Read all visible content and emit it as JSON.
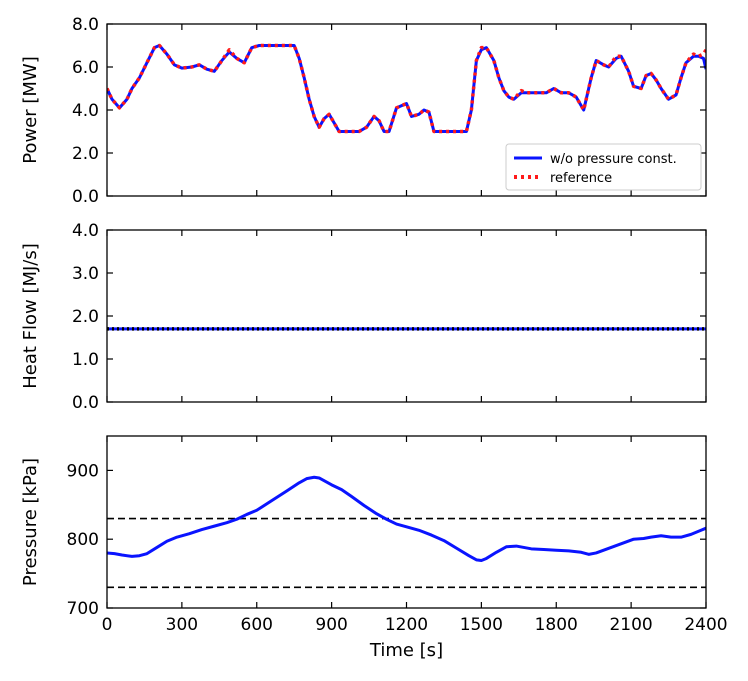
{
  "chart_data": [
    {
      "type": "line",
      "ylabel": "Power [MW]",
      "ylim": [
        0,
        8
      ],
      "yticks": [
        "0.0",
        "2.0",
        "4.0",
        "6.0",
        "8.0"
      ],
      "xlim": [
        0,
        2400
      ],
      "legend": {
        "placement": "lower-right",
        "entries": [
          "w/o pressure const.",
          "reference"
        ]
      },
      "series": [
        {
          "name": "w/o pressure const.",
          "color": "#0a14ff",
          "style": "solid",
          "x": [
            0,
            20,
            50,
            80,
            100,
            130,
            160,
            190,
            210,
            240,
            270,
            300,
            340,
            370,
            400,
            430,
            460,
            490,
            520,
            550,
            580,
            610,
            650,
            700,
            750,
            770,
            790,
            810,
            830,
            850,
            870,
            890,
            930,
            980,
            1010,
            1040,
            1070,
            1090,
            1110,
            1130,
            1160,
            1200,
            1220,
            1250,
            1270,
            1290,
            1310,
            1340,
            1380,
            1420,
            1440,
            1460,
            1480,
            1500,
            1520,
            1550,
            1570,
            1590,
            1610,
            1630,
            1660,
            1680,
            1700,
            1730,
            1760,
            1790,
            1820,
            1850,
            1880,
            1910,
            1940,
            1960,
            1990,
            2010,
            2040,
            2060,
            2090,
            2110,
            2140,
            2160,
            2180,
            2200,
            2220,
            2250,
            2280,
            2300,
            2320,
            2350,
            2370,
            2390,
            2400
          ],
          "values": [
            5.0,
            4.5,
            4.1,
            4.5,
            5.0,
            5.5,
            6.2,
            6.9,
            7.0,
            6.6,
            6.1,
            5.95,
            6.0,
            6.1,
            5.9,
            5.8,
            6.3,
            6.7,
            6.4,
            6.2,
            6.9,
            7.0,
            7.0,
            7.0,
            7.0,
            6.4,
            5.5,
            4.5,
            3.7,
            3.2,
            3.6,
            3.8,
            3.0,
            3.0,
            3.0,
            3.2,
            3.7,
            3.5,
            3.0,
            3.0,
            4.1,
            4.3,
            3.7,
            3.8,
            4.0,
            3.9,
            3.0,
            3.0,
            3.0,
            3.0,
            3.0,
            4.0,
            6.3,
            6.8,
            6.9,
            6.3,
            5.5,
            4.9,
            4.6,
            4.5,
            4.8,
            4.8,
            4.8,
            4.8,
            4.8,
            5.0,
            4.8,
            4.8,
            4.6,
            4.0,
            5.5,
            6.3,
            6.1,
            6.0,
            6.4,
            6.5,
            5.8,
            5.1,
            5.0,
            5.6,
            5.7,
            5.4,
            5.0,
            4.5,
            4.7,
            5.5,
            6.2,
            6.5,
            6.5,
            6.4,
            5.9
          ]
        },
        {
          "name": "reference",
          "color": "#ff1a1a",
          "style": "dotted",
          "x": [
            0,
            20,
            50,
            80,
            100,
            130,
            160,
            190,
            210,
            240,
            270,
            300,
            340,
            370,
            400,
            430,
            460,
            490,
            520,
            550,
            580,
            610,
            650,
            700,
            750,
            770,
            790,
            810,
            830,
            850,
            870,
            890,
            930,
            980,
            1010,
            1040,
            1070,
            1090,
            1110,
            1130,
            1160,
            1200,
            1220,
            1250,
            1270,
            1290,
            1310,
            1340,
            1380,
            1420,
            1440,
            1460,
            1480,
            1500,
            1520,
            1550,
            1570,
            1590,
            1610,
            1630,
            1660,
            1680,
            1700,
            1730,
            1760,
            1790,
            1820,
            1850,
            1880,
            1910,
            1940,
            1960,
            1990,
            2010,
            2040,
            2060,
            2090,
            2110,
            2140,
            2160,
            2180,
            2200,
            2220,
            2250,
            2280,
            2300,
            2320,
            2350,
            2370,
            2390,
            2400
          ],
          "values": [
            5.0,
            4.5,
            4.1,
            4.5,
            5.0,
            5.5,
            6.2,
            6.9,
            7.0,
            6.6,
            6.1,
            5.95,
            6.0,
            6.1,
            5.9,
            5.8,
            6.3,
            6.8,
            6.4,
            6.2,
            6.9,
            7.0,
            7.0,
            7.0,
            7.0,
            6.4,
            5.5,
            4.5,
            3.7,
            3.2,
            3.6,
            3.8,
            3.0,
            3.0,
            3.0,
            3.2,
            3.7,
            3.5,
            3.0,
            3.0,
            4.1,
            4.3,
            3.7,
            3.8,
            4.0,
            3.9,
            3.0,
            3.0,
            3.0,
            3.0,
            3.0,
            4.0,
            6.3,
            6.9,
            6.9,
            6.3,
            5.5,
            4.9,
            4.6,
            4.5,
            4.9,
            4.8,
            4.8,
            4.8,
            4.8,
            5.0,
            4.8,
            4.8,
            4.6,
            4.0,
            5.5,
            6.3,
            6.1,
            6.0,
            6.5,
            6.5,
            5.8,
            5.1,
            5.0,
            5.6,
            5.7,
            5.4,
            5.0,
            4.5,
            4.7,
            5.5,
            6.2,
            6.6,
            6.5,
            6.6,
            6.8
          ]
        }
      ]
    },
    {
      "type": "line",
      "ylabel": "Heat Flow [MJ/s]",
      "ylim": [
        0,
        4
      ],
      "yticks": [
        "0.0",
        "1.0",
        "2.0",
        "3.0",
        "4.0"
      ],
      "xlim": [
        0,
        2400
      ],
      "series": [
        {
          "color": "#0a14ff",
          "style": "solid",
          "x": [
            0,
            2400
          ],
          "values": [
            1.7,
            1.7
          ]
        },
        {
          "color": "#000000",
          "style": "dotted",
          "x": [
            0,
            2400
          ],
          "values": [
            1.7,
            1.7
          ]
        }
      ]
    },
    {
      "type": "line",
      "ylabel": "Pressure [kPa]",
      "xlabel": "Time [s]",
      "ylim": [
        700,
        950
      ],
      "yticks": [
        "700",
        "800",
        "900"
      ],
      "xlim": [
        0,
        2400
      ],
      "xticks": [
        "0",
        "300",
        "600",
        "900",
        "1200",
        "1500",
        "1800",
        "2100",
        "2400"
      ],
      "series": [
        {
          "color": "#0a14ff",
          "style": "solid",
          "x": [
            0,
            30,
            60,
            100,
            130,
            160,
            200,
            240,
            280,
            330,
            380,
            430,
            480,
            520,
            560,
            600,
            660,
            720,
            770,
            800,
            830,
            850,
            870,
            900,
            940,
            980,
            1030,
            1080,
            1120,
            1160,
            1200,
            1250,
            1300,
            1350,
            1400,
            1450,
            1480,
            1500,
            1520,
            1560,
            1600,
            1640,
            1670,
            1700,
            1750,
            1800,
            1850,
            1900,
            1930,
            1960,
            1990,
            2020,
            2050,
            2080,
            2110,
            2150,
            2180,
            2220,
            2260,
            2300,
            2340,
            2380,
            2400
          ],
          "values": [
            780,
            779,
            777,
            775,
            776,
            779,
            788,
            797,
            803,
            808,
            814,
            819,
            824,
            829,
            836,
            842,
            856,
            870,
            882,
            888,
            890,
            889,
            885,
            879,
            872,
            862,
            849,
            837,
            829,
            822,
            818,
            813,
            806,
            798,
            787,
            776,
            770,
            769,
            772,
            781,
            789,
            790,
            788,
            786,
            785,
            784,
            783,
            781,
            778,
            780,
            784,
            788,
            792,
            796,
            800,
            801,
            803,
            805,
            803,
            803,
            807,
            813,
            816
          ]
        }
      ],
      "reference_lines": [
        830,
        730
      ]
    }
  ]
}
